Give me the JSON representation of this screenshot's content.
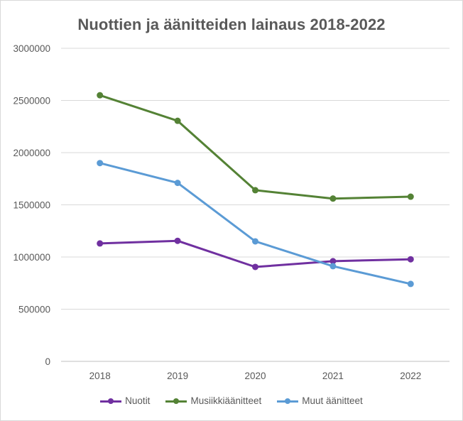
{
  "chart_data": {
    "type": "line",
    "title": "Nuottien ja äänitteiden lainaus 2018-2022",
    "xlabel": "",
    "ylabel": "",
    "categories": [
      "2018",
      "2019",
      "2020",
      "2021",
      "2022"
    ],
    "ylim": [
      0,
      3000000
    ],
    "yticks": [
      0,
      500000,
      1000000,
      1500000,
      2000000,
      2500000,
      3000000
    ],
    "ytick_labels": [
      "0",
      "500000",
      "1000000",
      "1500000",
      "2000000",
      "2500000",
      "3000000"
    ],
    "grid": true,
    "legend_position": "bottom",
    "series": [
      {
        "name": "Nuotit",
        "color": "#7030a0",
        "values": [
          1130000,
          1155000,
          905000,
          960000,
          978000
        ]
      },
      {
        "name": "Musiikkiäänitteet",
        "color": "#548235",
        "values": [
          2550000,
          2305000,
          1640000,
          1560000,
          1578000
        ]
      },
      {
        "name": "Muut äänitteet",
        "color": "#5b9bd5",
        "values": [
          1900000,
          1710000,
          1150000,
          912000,
          742000
        ]
      }
    ]
  }
}
